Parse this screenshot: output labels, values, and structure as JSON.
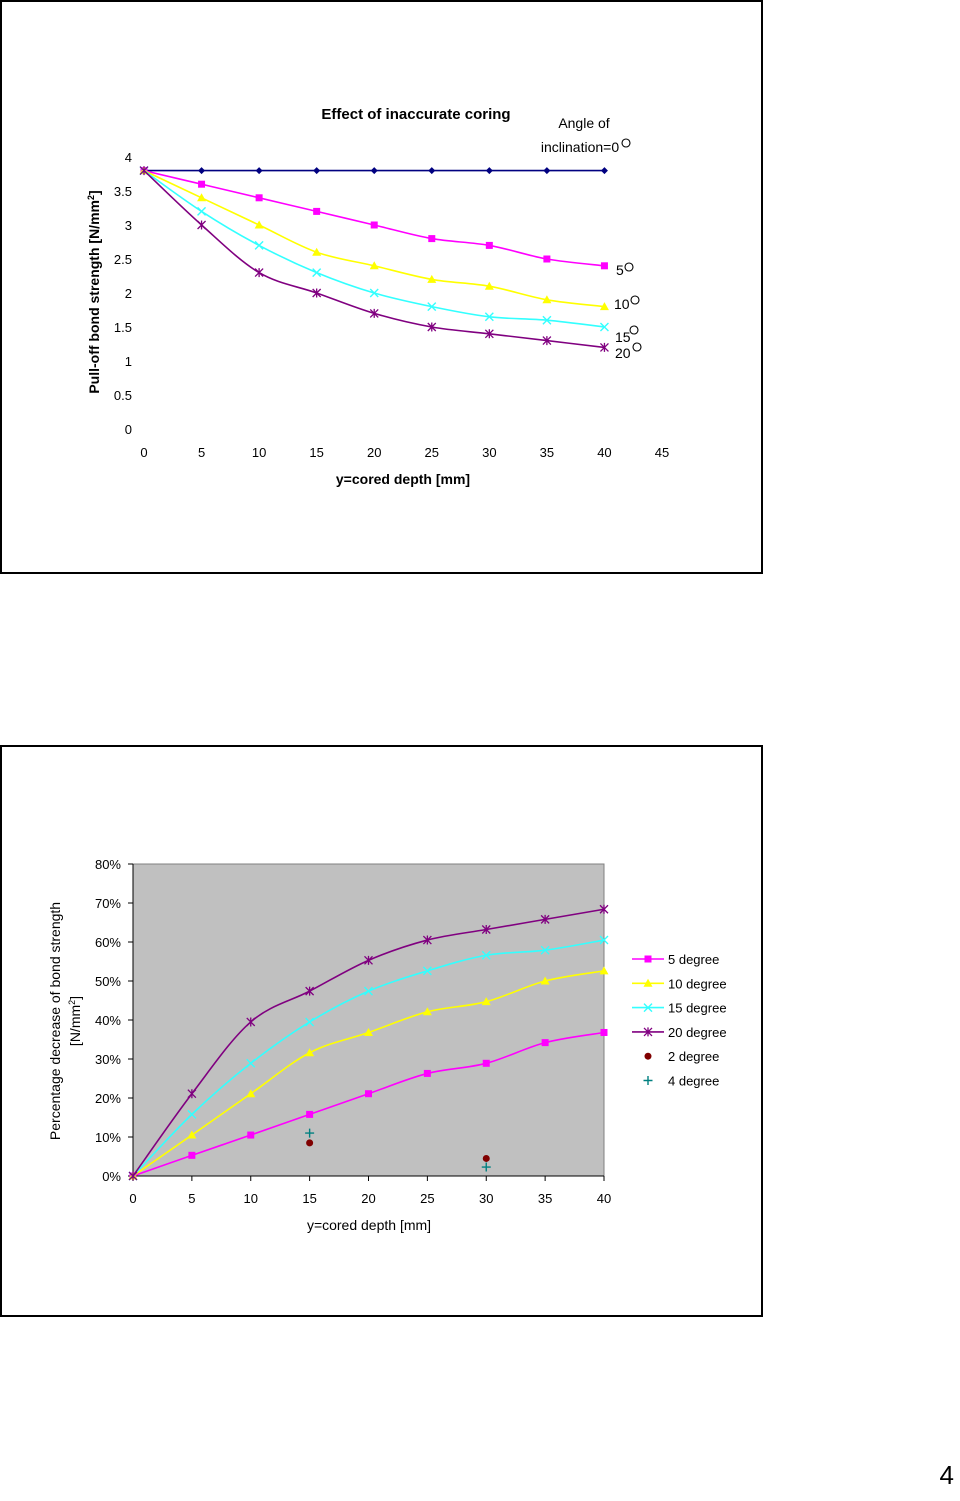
{
  "page": {
    "page_number": "4"
  },
  "chart_data": [
    {
      "type": "line",
      "title": "Effect of inaccurate coring",
      "xlabel": "y=cored depth [mm]",
      "ylabel": "Pull-off bond strength [N/mm",
      "ylabel_sup": "2",
      "ylabel_end": "]",
      "xlim": [
        0,
        45
      ],
      "ylim": [
        0,
        4
      ],
      "xticks": [
        "0",
        "5",
        "10",
        "15",
        "20",
        "25",
        "30",
        "35",
        "40",
        "45"
      ],
      "yticks": [
        "0",
        "0.5",
        "1",
        "1.5",
        "2",
        "2.5",
        "3",
        "3.5",
        "4"
      ],
      "grid": false,
      "x": [
        0,
        5,
        10,
        15,
        20,
        25,
        30,
        35,
        40
      ],
      "series": [
        {
          "label": "Angle of",
          "label2": "inclination=0",
          "values": [
            3.8,
            3.8,
            3.8,
            3.8,
            3.8,
            3.8,
            3.8,
            3.8,
            3.8
          ],
          "color": "#000080",
          "marker": "diamond"
        },
        {
          "label": "5",
          "values": [
            3.8,
            3.6,
            3.4,
            3.2,
            3.0,
            2.8,
            2.7,
            2.5,
            2.4
          ],
          "color": "#ff00ff",
          "marker": "square"
        },
        {
          "label": "10",
          "values": [
            3.8,
            3.4,
            3.0,
            2.6,
            2.4,
            2.2,
            2.1,
            1.9,
            1.8
          ],
          "color": "#ffff00",
          "marker": "triangle"
        },
        {
          "label": "15",
          "values": [
            3.8,
            3.2,
            2.7,
            2.3,
            2.0,
            1.8,
            1.65,
            1.6,
            1.5
          ],
          "color": "#33ffff",
          "marker": "x"
        },
        {
          "label": "20",
          "values": [
            3.8,
            3.0,
            2.3,
            2.0,
            1.7,
            1.5,
            1.4,
            1.3,
            1.2
          ],
          "color": "#800080",
          "marker": "star"
        }
      ]
    },
    {
      "type": "line",
      "title": "",
      "xlabel": "y=cored depth [mm]",
      "ylabel_line1": "Percentage decrease of bond strength",
      "ylabel_line2": "[N/mm",
      "ylabel_sup": "2",
      "ylabel_end": "]",
      "xlim": [
        0,
        40
      ],
      "ylim": [
        0,
        80
      ],
      "xticks": [
        "0",
        "5",
        "10",
        "15",
        "20",
        "25",
        "30",
        "35",
        "40"
      ],
      "yticks": [
        "0%",
        "10%",
        "20%",
        "30%",
        "40%",
        "50%",
        "60%",
        "70%",
        "80%"
      ],
      "plot_background": "#c0c0c0",
      "grid": false,
      "legend_position": "right",
      "x": [
        0,
        5,
        10,
        15,
        20,
        25,
        30,
        35,
        40
      ],
      "series": [
        {
          "name": "5 degree",
          "values": [
            0,
            5.3,
            10.5,
            15.8,
            21.1,
            26.3,
            28.9,
            34.2,
            36.8
          ],
          "color": "#ff00ff",
          "marker": "square"
        },
        {
          "name": "10 degree",
          "values": [
            0,
            10.5,
            21.1,
            31.6,
            36.8,
            42.1,
            44.7,
            50.0,
            52.6
          ],
          "color": "#ffff00",
          "marker": "triangle"
        },
        {
          "name": "15 degree",
          "values": [
            0,
            15.8,
            28.9,
            39.5,
            47.4,
            52.6,
            56.6,
            57.9,
            60.5
          ],
          "color": "#33ffff",
          "marker": "x"
        },
        {
          "name": "20 degree",
          "values": [
            0,
            21.1,
            39.5,
            47.4,
            55.3,
            60.5,
            63.2,
            65.8,
            68.4
          ],
          "color": "#800080",
          "marker": "star"
        }
      ],
      "points": [
        {
          "name": "2 degree",
          "x": [
            15,
            30
          ],
          "y": [
            8.5,
            4.5
          ],
          "color": "#800000",
          "marker": "circle"
        },
        {
          "name": "4 degree",
          "x": [
            15,
            30
          ],
          "y": [
            11,
            2.3
          ],
          "color": "#008080",
          "marker": "plus"
        }
      ]
    }
  ]
}
